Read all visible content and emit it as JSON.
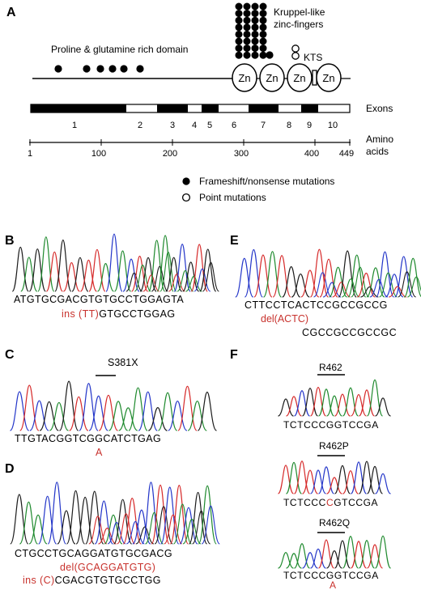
{
  "panels": {
    "A": "A",
    "B": "B",
    "C": "C",
    "D": "D",
    "E": "E",
    "F": "F"
  },
  "panelA": {
    "domain_label": "Proline & glutamine  rich domain",
    "kruppel_line1": "Kruppel-like",
    "kruppel_line2": "zinc-fingers",
    "kts_label": "KTS",
    "zn": [
      "Zn",
      "Zn",
      "Zn",
      "Zn"
    ],
    "exons_label": "Exons",
    "exon_numbers": [
      "1",
      "2",
      "3",
      "4",
      "5",
      "6",
      "7",
      "8",
      "9",
      "10"
    ],
    "aa_label_1": "Amino",
    "aa_label_2": "acids",
    "aa_ticks": [
      "1",
      "100",
      "200",
      "300",
      "400",
      "449"
    ],
    "legend_filled": "Frameshift/nonsense mutations",
    "legend_open": "Point mutations"
  },
  "panelB": {
    "seq1": "ATGTGCGACGTGTGCCTGGAGTA",
    "seq2_red": "ins (TT)",
    "seq2_black": "GTGCCTGGAG"
  },
  "panelC": {
    "mutation": "S381X",
    "seq": "TTGTACGGTCGGCATCTGAG",
    "sub": "A"
  },
  "panelD": {
    "seq": "CTGCCTGCAGGATGTGCGACG",
    "del": "del(GCAGGATGTG)",
    "ins_red": "ins (C)",
    "ins_black": "CGACGTGTGCCTGG"
  },
  "panelE": {
    "seq": "CTTCCTCACTCCGCCGCCG",
    "del": "del(ACTC)",
    "seq2": "CGCCGCCGCCGC"
  },
  "panelF": {
    "label1": "R462",
    "seq1": "TCTCCCGGTCCGA",
    "label2": "R462P",
    "seq2_a": "TCTCCC",
    "seq2_red": "C",
    "seq2_b": "GTCCGA",
    "label3": "R462Q",
    "seq3": "TCTCCCGGTCCGA",
    "sub3": "A"
  }
}
